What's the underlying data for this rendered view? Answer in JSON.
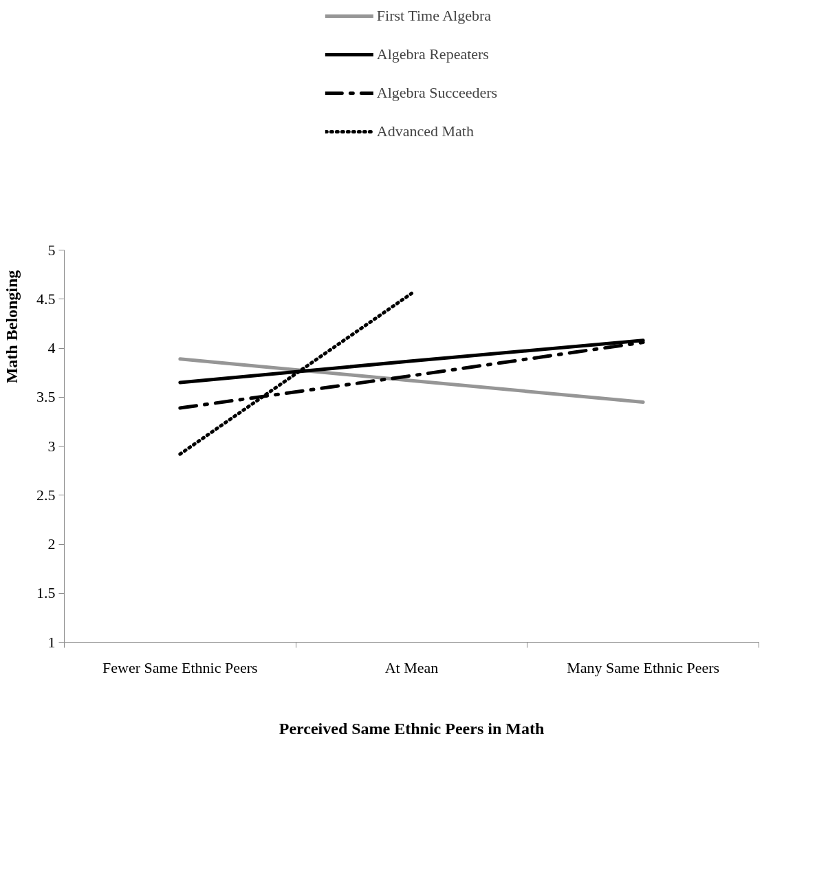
{
  "chart_data": {
    "type": "line",
    "xlabel": "Perceived Same Ethnic Peers in Math",
    "ylabel": "Math  Belonging",
    "categories": [
      "Fewer Same Ethnic Peers",
      "At Mean",
      "Many Same Ethnic Peers"
    ],
    "series": [
      {
        "name": "First Time Algebra",
        "color": "#969696",
        "line_style": "solid",
        "values": [
          3.89,
          3.67,
          3.45
        ]
      },
      {
        "name": "Algebra Repeaters",
        "color": "#000000",
        "line_style": "solid",
        "values": [
          3.65,
          3.87,
          4.08
        ]
      },
      {
        "name": "Algebra Succeeders",
        "color": "#000000",
        "line_style": "dashdot",
        "values": [
          3.39,
          3.72,
          4.06
        ]
      },
      {
        "name": "Advanced Math",
        "color": "#000000",
        "line_style": "dotted",
        "values": [
          2.92,
          4.56,
          null
        ]
      }
    ],
    "ylim": [
      1,
      5
    ],
    "yticks": [
      1,
      1.5,
      2,
      2.5,
      3,
      3.5,
      4,
      4.5,
      5
    ],
    "grid": false,
    "legend": "top",
    "marker": "none"
  }
}
